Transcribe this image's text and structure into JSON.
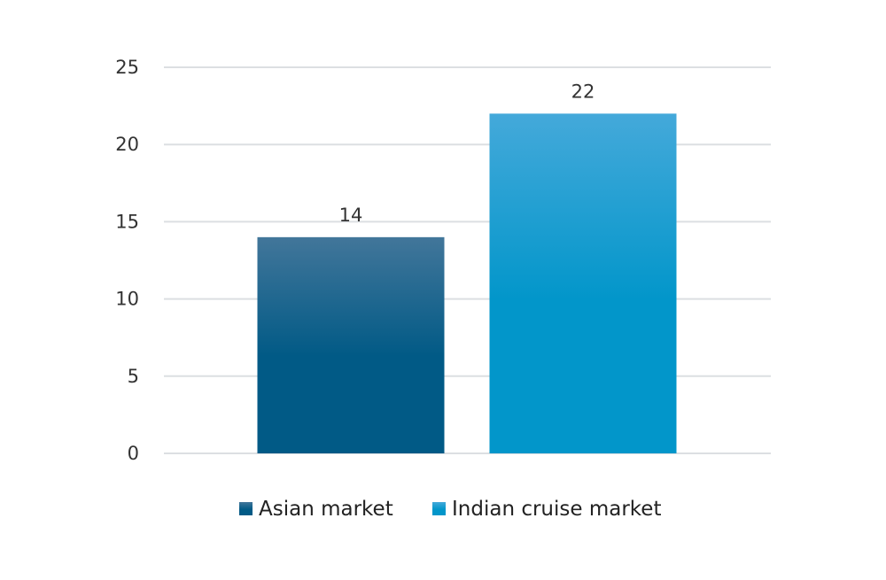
{
  "chart_data": {
    "type": "bar",
    "title": "",
    "xlabel": "",
    "ylabel": "",
    "ylim": [
      0,
      25
    ],
    "yticks": [
      0,
      5,
      10,
      15,
      20,
      25
    ],
    "grid": true,
    "legend_position": "bottom",
    "data_labels": true,
    "series": [
      {
        "name": "Asian market",
        "value": 14,
        "color_top": "#42769a",
        "color_bottom": "#015a86"
      },
      {
        "name": "Indian cruise market",
        "value": 22,
        "color_top": "#44a9da",
        "color_bottom": "#0296ca"
      }
    ]
  }
}
